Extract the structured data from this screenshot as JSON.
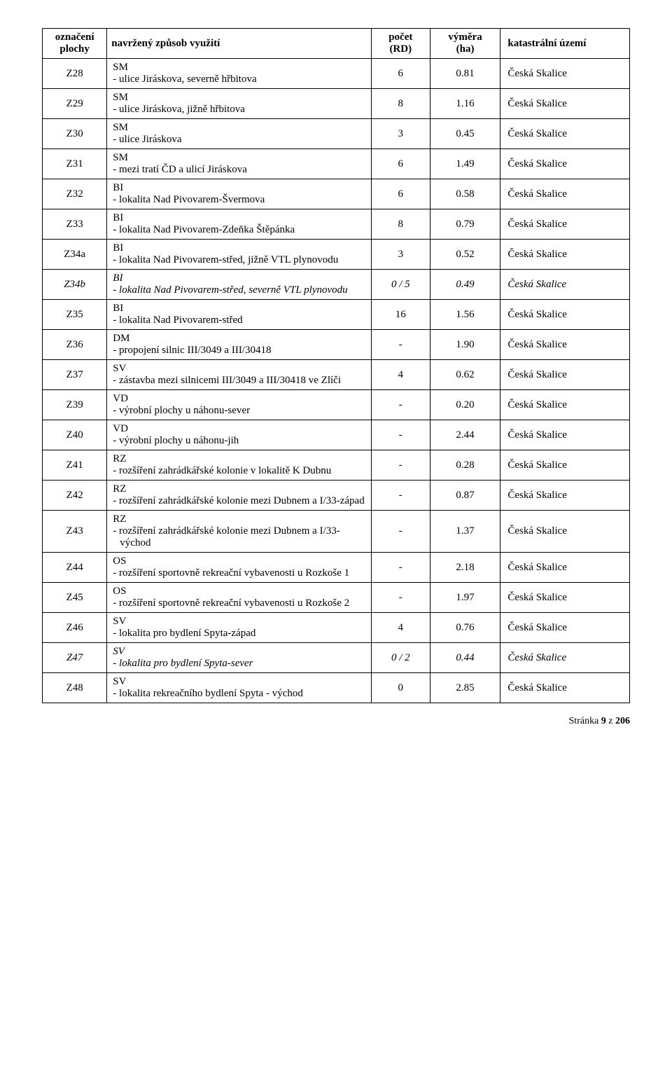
{
  "header": {
    "col1_l1": "označení",
    "col1_l2": "plochy",
    "col2": "navržený způsob využití",
    "col3_l1": "počet",
    "col3_l2": "(RD)",
    "col4_l1": "výměra",
    "col4_l2": "(ha)",
    "col5": "katastrální území"
  },
  "rows": [
    {
      "id": "Z28",
      "code": "SM",
      "desc": "- ulice Jiráskova, severně hřbitova",
      "pocet": "6",
      "vym": "0.81",
      "kat": "Česká Skalice",
      "italic": false
    },
    {
      "id": "Z29",
      "code": "SM",
      "desc": "- ulice Jiráskova, jižně hřbitova",
      "pocet": "8",
      "vym": "1.16",
      "kat": "Česká Skalice",
      "italic": false
    },
    {
      "id": "Z30",
      "code": "SM",
      "desc": "- ulice Jiráskova",
      "pocet": "3",
      "vym": "0.45",
      "kat": "Česká Skalice",
      "italic": false
    },
    {
      "id": "Z31",
      "code": "SM",
      "desc": "- mezi tratí ČD a ulicí Jiráskova",
      "pocet": "6",
      "vym": "1.49",
      "kat": "Česká Skalice",
      "italic": false
    },
    {
      "id": "Z32",
      "code": "BI",
      "desc": "- lokalita Nad Pivovarem-Švermova",
      "pocet": "6",
      "vym": "0.58",
      "kat": "Česká Skalice",
      "italic": false
    },
    {
      "id": "Z33",
      "code": "BI",
      "desc": "- lokalita Nad Pivovarem-Zdeňka Štěpánka",
      "pocet": "8",
      "vym": "0.79",
      "kat": "Česká Skalice",
      "italic": false
    },
    {
      "id": "Z34a",
      "code": "BI",
      "desc": "- lokalita Nad Pivovarem-střed, jižně VTL plynovodu",
      "pocet": "3",
      "vym": "0.52",
      "kat": "Česká Skalice",
      "italic": false
    },
    {
      "id": "Z34b",
      "code": "BI",
      "desc": "- lokalita Nad Pivovarem-střed, severně VTL plynovodu",
      "pocet": "0 / 5",
      "vym": "0.49",
      "kat": "Česká Skalice",
      "italic": true
    },
    {
      "id": "Z35",
      "code": "BI",
      "desc": "- lokalita Nad Pivovarem-střed",
      "pocet": "16",
      "vym": "1.56",
      "kat": "Česká Skalice",
      "italic": false
    },
    {
      "id": "Z36",
      "code": "DM",
      "desc": "- propojení silnic III/3049 a III/30418",
      "pocet": "-",
      "vym": "1.90",
      "kat": "Česká Skalice",
      "italic": false
    },
    {
      "id": "Z37",
      "code": "SV",
      "desc": "- zástavba mezi silnicemi III/3049 a III/30418 ve Zlíči",
      "pocet": "4",
      "vym": "0.62",
      "kat": "Česká Skalice",
      "italic": false
    },
    {
      "id": "Z39",
      "code": "VD",
      "desc": "- výrobní plochy u náhonu-sever",
      "pocet": "-",
      "vym": "0.20",
      "kat": "Česká Skalice",
      "italic": false
    },
    {
      "id": "Z40",
      "code": "VD",
      "desc": "- výrobní plochy u náhonu-jih",
      "pocet": "-",
      "vym": "2.44",
      "kat": "Česká Skalice",
      "italic": false
    },
    {
      "id": "Z41",
      "code": "RZ",
      "desc": "- rozšíření zahrádkářské kolonie v lokalitě K Dubnu",
      "pocet": "-",
      "vym": "0.28",
      "kat": "Česká Skalice",
      "italic": false
    },
    {
      "id": "Z42",
      "code": "RZ",
      "desc": "- rozšíření zahrádkářské kolonie mezi Dubnem a I/33-západ",
      "pocet": "-",
      "vym": "0.87",
      "kat": "Česká Skalice",
      "italic": false
    },
    {
      "id": "Z43",
      "code": "RZ",
      "desc": "- rozšíření zahrádkářské kolonie mezi Dubnem a I/33-východ",
      "pocet": "-",
      "vym": "1.37",
      "kat": "Česká Skalice",
      "italic": false
    },
    {
      "id": "Z44",
      "code": "OS",
      "desc": "- rozšíření sportovně rekreační vybavenosti u Rozkoše 1",
      "pocet": "-",
      "vym": "2.18",
      "kat": "Česká Skalice",
      "italic": false
    },
    {
      "id": "Z45",
      "code": "OS",
      "desc": "- rozšíření sportovně rekreační vybavenosti u Rozkoše 2",
      "pocet": "-",
      "vym": "1.97",
      "kat": "Česká Skalice",
      "italic": false
    },
    {
      "id": "Z46",
      "code": "SV",
      "desc": "- lokalita pro bydlení Spyta-západ",
      "pocet": "4",
      "vym": "0.76",
      "kat": "Česká Skalice",
      "italic": false
    },
    {
      "id": "Z47",
      "code": "SV",
      "desc": "- lokalita pro bydlení Spyta-sever",
      "pocet": "0 / 2",
      "vym": "0.44",
      "kat": "Česká Skalice",
      "italic": true
    },
    {
      "id": "Z48",
      "code": "SV",
      "desc": "- lokalita rekreačního bydlení Spyta - východ",
      "pocet": "0",
      "vym": "2.85",
      "kat": "Česká Skalice",
      "italic": false
    }
  ],
  "footer": {
    "prefix": "Stránka ",
    "page": "9",
    "sep": " z ",
    "total": "206"
  }
}
